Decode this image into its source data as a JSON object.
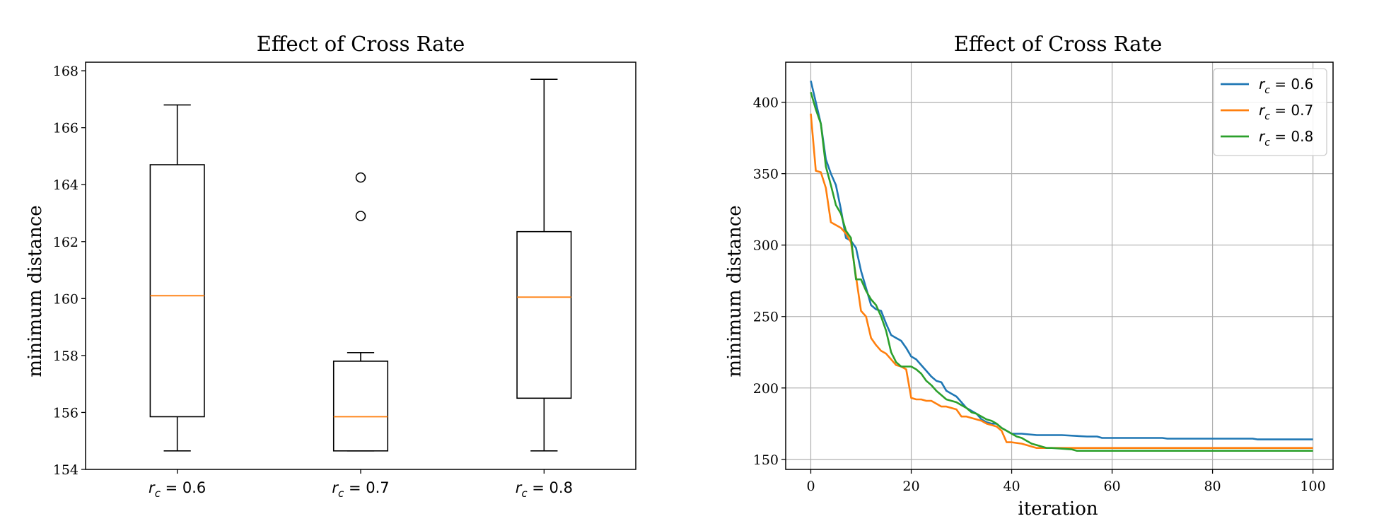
{
  "chart_data": [
    {
      "type": "box",
      "title": "Effect of Cross Rate",
      "xlabel": "",
      "ylabel": "minimum distance",
      "ylim": [
        154,
        168.3
      ],
      "yticks": [
        154,
        156,
        158,
        160,
        162,
        164,
        166,
        168
      ],
      "grid": false,
      "boxes": [
        {
          "label_var": "r",
          "label_sub": "c",
          "label_rest": " = 0.6",
          "whisker_low": 154.65,
          "q1": 155.85,
          "median": 160.1,
          "q3": 164.7,
          "whisker_high": 166.8,
          "fliers": []
        },
        {
          "label_var": "r",
          "label_sub": "c",
          "label_rest": " = 0.7",
          "whisker_low": 154.65,
          "q1": 154.65,
          "median": 155.85,
          "q3": 157.8,
          "whisker_high": 158.1,
          "fliers": [
            162.9,
            164.25
          ]
        },
        {
          "label_var": "r",
          "label_sub": "c",
          "label_rest": " = 0.8",
          "whisker_low": 154.65,
          "q1": 156.5,
          "median": 160.05,
          "q3": 162.35,
          "whisker_high": 167.7,
          "fliers": []
        }
      ],
      "colors": {
        "box": "#000000",
        "median": "#ff7f0e"
      }
    },
    {
      "type": "line",
      "title": "Effect of Cross Rate",
      "xlabel": "iteration",
      "ylabel": "minimum distance",
      "xlim": [
        -5,
        104
      ],
      "ylim": [
        143,
        428
      ],
      "xticks": [
        0,
        20,
        40,
        60,
        80,
        100
      ],
      "yticks": [
        150,
        200,
        250,
        300,
        350,
        400
      ],
      "grid": true,
      "legend_position": "top-right",
      "series": [
        {
          "name": "r_c = 0.6",
          "label_var": "r",
          "label_sub": "c",
          "label_rest": " = 0.6",
          "color": "#1f77b4",
          "points": [
            [
              0,
              415
            ],
            [
              1,
              400
            ],
            [
              2,
              385
            ],
            [
              3,
              360
            ],
            [
              4,
              350
            ],
            [
              5,
              342
            ],
            [
              6,
              325
            ],
            [
              7,
              305
            ],
            [
              8,
              303
            ],
            [
              9,
              298
            ],
            [
              10,
              282
            ],
            [
              11,
              270
            ],
            [
              12,
              258
            ],
            [
              13,
              255
            ],
            [
              14,
              254
            ],
            [
              15,
              245
            ],
            [
              16,
              237
            ],
            [
              17,
              235
            ],
            [
              18,
              233
            ],
            [
              19,
              228
            ],
            [
              20,
              222
            ],
            [
              21,
              220
            ],
            [
              22,
              216
            ],
            [
              23,
              212
            ],
            [
              24,
              208
            ],
            [
              25,
              205
            ],
            [
              26,
              204
            ],
            [
              27,
              198
            ],
            [
              28,
              196
            ],
            [
              29,
              194
            ],
            [
              30,
              190
            ],
            [
              31,
              186
            ],
            [
              32,
              184
            ],
            [
              33,
              182
            ],
            [
              34,
              178
            ],
            [
              35,
              176
            ],
            [
              36,
              175
            ],
            [
              37,
              175
            ],
            [
              38,
              172
            ],
            [
              39,
              170
            ],
            [
              40,
              168
            ],
            [
              42,
              168
            ],
            [
              45,
              167
            ],
            [
              50,
              167
            ],
            [
              55,
              166
            ],
            [
              57,
              166
            ],
            [
              58,
              165
            ],
            [
              70,
              165
            ],
            [
              71,
              164.5
            ],
            [
              88,
              164.5
            ],
            [
              89,
              164
            ],
            [
              100,
              164
            ]
          ]
        },
        {
          "name": "r_c = 0.7",
          "label_var": "r",
          "label_sub": "c",
          "label_rest": " = 0.7",
          "color": "#ff7f0e",
          "points": [
            [
              0,
              392
            ],
            [
              1,
              352
            ],
            [
              2,
              351
            ],
            [
              3,
              340
            ],
            [
              4,
              316
            ],
            [
              5,
              314
            ],
            [
              6,
              312
            ],
            [
              7,
              308
            ],
            [
              8,
              302
            ],
            [
              9,
              278
            ],
            [
              10,
              254
            ],
            [
              11,
              250
            ],
            [
              12,
              235
            ],
            [
              13,
              230
            ],
            [
              14,
              226
            ],
            [
              15,
              224
            ],
            [
              16,
              220
            ],
            [
              17,
              216
            ],
            [
              18,
              215
            ],
            [
              19,
              213
            ],
            [
              20,
              193
            ],
            [
              21,
              192
            ],
            [
              22,
              192
            ],
            [
              23,
              191
            ],
            [
              24,
              191
            ],
            [
              25,
              189
            ],
            [
              26,
              187
            ],
            [
              27,
              187
            ],
            [
              28,
              186
            ],
            [
              29,
              185
            ],
            [
              30,
              180
            ],
            [
              31,
              180
            ],
            [
              32,
              179
            ],
            [
              33,
              178
            ],
            [
              34,
              177
            ],
            [
              35,
              175
            ],
            [
              36,
              174
            ],
            [
              37,
              173
            ],
            [
              38,
              170
            ],
            [
              39,
              162
            ],
            [
              40,
              162
            ],
            [
              42,
              161
            ],
            [
              43,
              160
            ],
            [
              44,
              159
            ],
            [
              45,
              158
            ],
            [
              46,
              158
            ],
            [
              47,
              158
            ],
            [
              48,
              158
            ],
            [
              100,
              158
            ]
          ]
        },
        {
          "name": "r_c = 0.8",
          "label_var": "r",
          "label_sub": "c",
          "label_rest": " = 0.8",
          "color": "#2ca02c",
          "points": [
            [
              0,
              407
            ],
            [
              1,
              395
            ],
            [
              2,
              385
            ],
            [
              3,
              355
            ],
            [
              4,
              342
            ],
            [
              5,
              328
            ],
            [
              6,
              322
            ],
            [
              7,
              310
            ],
            [
              8,
              305
            ],
            [
              9,
              276
            ],
            [
              10,
              276
            ],
            [
              11,
              268
            ],
            [
              12,
              262
            ],
            [
              13,
              258
            ],
            [
              14,
              250
            ],
            [
              15,
              240
            ],
            [
              16,
              225
            ],
            [
              17,
              218
            ],
            [
              18,
              215
            ],
            [
              19,
              215
            ],
            [
              20,
              215
            ],
            [
              21,
              213
            ],
            [
              22,
              210
            ],
            [
              23,
              205
            ],
            [
              24,
              202
            ],
            [
              25,
              198
            ],
            [
              26,
              195
            ],
            [
              27,
              192
            ],
            [
              28,
              191
            ],
            [
              29,
              190
            ],
            [
              30,
              188
            ],
            [
              31,
              186
            ],
            [
              32,
              183
            ],
            [
              33,
              182
            ],
            [
              34,
              180
            ],
            [
              35,
              178
            ],
            [
              36,
              177
            ],
            [
              37,
              175
            ],
            [
              38,
              172
            ],
            [
              39,
              170
            ],
            [
              40,
              168
            ],
            [
              41,
              166
            ],
            [
              42,
              165
            ],
            [
              43,
              163
            ],
            [
              44,
              161
            ],
            [
              45,
              160
            ],
            [
              46,
              159
            ],
            [
              47,
              158
            ],
            [
              48,
              158
            ],
            [
              52,
              157
            ],
            [
              53,
              156
            ],
            [
              100,
              156
            ]
          ]
        }
      ]
    }
  ]
}
